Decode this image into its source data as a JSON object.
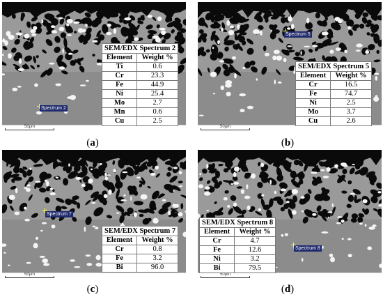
{
  "scale_label": "50µm",
  "panels": [
    {
      "caption": "a",
      "spectrum_label": "Spectrum 2",
      "table_title": "SEM/EDX Spectrum 2",
      "col_element": "Element",
      "col_weight": "Weight %",
      "rows": [
        [
          "Ti",
          "0.6"
        ],
        [
          "Cr",
          "23.3"
        ],
        [
          "Fe",
          "44.9"
        ],
        [
          "Ni",
          "25.4"
        ],
        [
          "Mo",
          "2.7"
        ],
        [
          "Mn",
          "0.6"
        ],
        [
          "Cu",
          "2.5"
        ]
      ]
    },
    {
      "caption": "b",
      "spectrum_label": "Spectrum 5",
      "table_title": "SEM/EDX Spectrum 5",
      "col_element": "Element",
      "col_weight": "Weight %",
      "rows": [
        [
          "Cr",
          "16.5"
        ],
        [
          "Fe",
          "74.7"
        ],
        [
          "Ni",
          "2.5"
        ],
        [
          "Mo",
          "3.7"
        ],
        [
          "Cu",
          "2.6"
        ]
      ]
    },
    {
      "caption": "c",
      "spectrum_label": "Spectrum 7",
      "table_title": "SEM/EDX Spectrum 7",
      "col_element": "Element",
      "col_weight": "Weight %",
      "rows": [
        [
          "Cr",
          "0.8"
        ],
        [
          "Fe",
          "3.2"
        ],
        [
          "Bi",
          "96.0"
        ]
      ]
    },
    {
      "caption": "d",
      "spectrum_label": "Spectrum 8",
      "table_title": "SEM/EDX Spectrum 8",
      "col_element": "Element",
      "col_weight": "Weight %",
      "rows": [
        [
          "Cr",
          "4.7"
        ],
        [
          "Fe",
          "12.6"
        ],
        [
          "Ni",
          "3.2"
        ],
        [
          "Bi",
          "79.5"
        ]
      ]
    }
  ],
  "colors": {
    "matrix_gray": "#8c8c8c",
    "bismuth_white": "#f4f4f4",
    "pore_black": "#0a0a0a",
    "marker_bg": "#1f2a6b",
    "marker_cross": "#ffff33"
  }
}
